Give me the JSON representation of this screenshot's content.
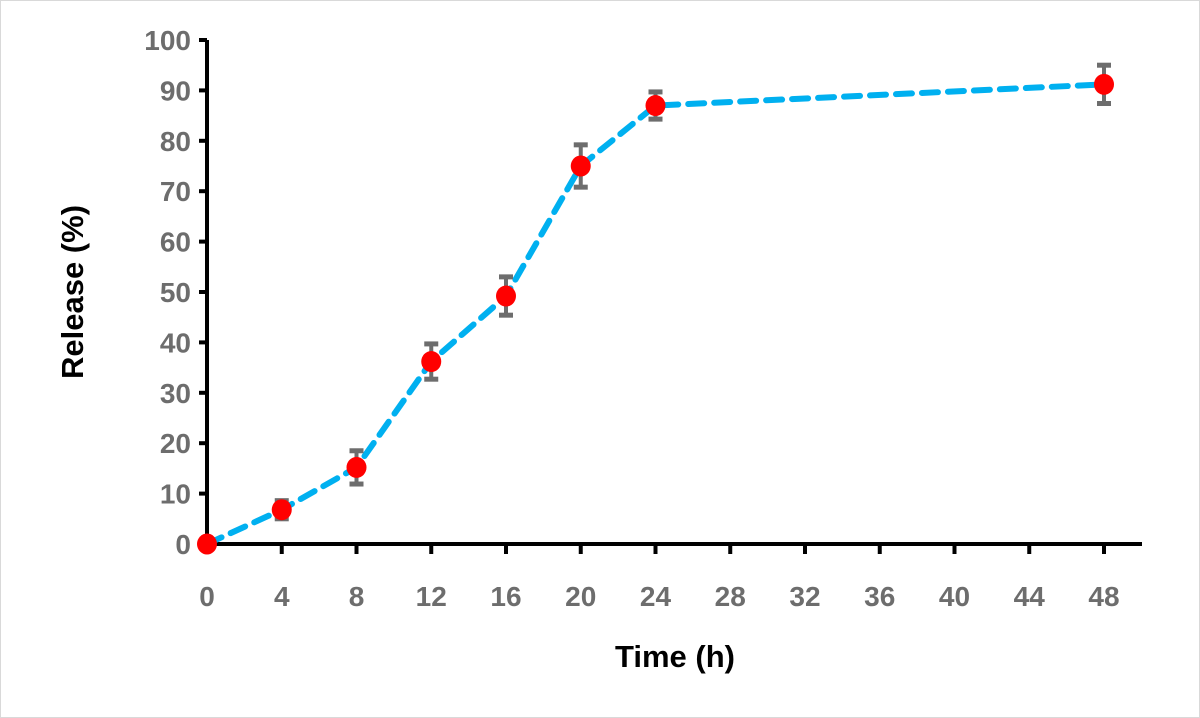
{
  "chart_data": {
    "type": "line",
    "title": "",
    "xlabel": "Time (h)",
    "ylabel": "Release (%)",
    "xlim": [
      0,
      48
    ],
    "ylim": [
      0,
      100
    ],
    "x_ticks": [
      0,
      4,
      8,
      12,
      16,
      20,
      24,
      28,
      32,
      36,
      40,
      44,
      48
    ],
    "y_ticks": [
      0,
      10,
      20,
      30,
      40,
      50,
      60,
      70,
      80,
      90,
      100
    ],
    "grid": false,
    "legend": "none",
    "series": [
      {
        "name": "Release",
        "x": [
          0,
          4,
          8,
          12,
          16,
          20,
          24,
          48
        ],
        "y": [
          0,
          6.8,
          15.2,
          36.2,
          49.2,
          75.0,
          87.0,
          91.2
        ],
        "error": [
          0,
          1.8,
          3.3,
          3.5,
          3.8,
          4.2,
          2.7,
          3.8
        ],
        "line_color": "#00b0f0",
        "marker_color": "#ff0000",
        "error_color": "#6d6d6d",
        "line_style": "dashed"
      }
    ],
    "axis_color": "#000000",
    "tick_label_color": "#6d6d6d"
  }
}
